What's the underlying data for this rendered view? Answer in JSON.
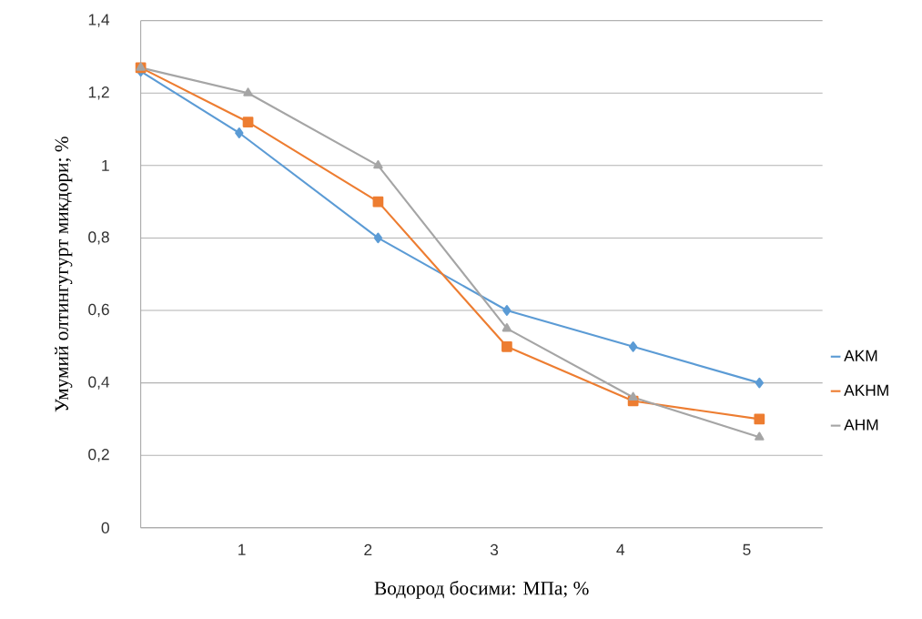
{
  "chart_data": {
    "type": "line",
    "xlabel": "Водород босими: МПа; %",
    "ylabel": "Умумий олтингугурт микдори; %",
    "xlim": [
      0.2,
      5.6
    ],
    "xticks": [
      1,
      2,
      3,
      4,
      5
    ],
    "ylim": [
      0,
      1.4
    ],
    "yticks": [
      0,
      {
        "value": 0.2,
        "label": "0,2"
      },
      {
        "value": 0.4,
        "label": "0,4"
      },
      {
        "value": 0.6,
        "label": "0,6"
      },
      {
        "value": 0.8,
        "label": "0,8"
      },
      1,
      {
        "value": 1.2,
        "label": "1,2"
      },
      {
        "value": 1.4,
        "label": "1,4"
      }
    ],
    "grid": "y",
    "legend": "right",
    "line_style": "solid",
    "series": [
      {
        "name": "AKM",
        "color": "#5b9bd5",
        "marker": "diamond",
        "x": [
          0.2,
          0.98,
          2.08,
          3.1,
          4.1,
          5.1
        ],
        "values": [
          1.26,
          1.09,
          0.8,
          0.6,
          0.5,
          0.4
        ]
      },
      {
        "name": "AKHM",
        "color": "#ed7d31",
        "marker": "square",
        "x": [
          0.2,
          1.05,
          2.08,
          3.1,
          4.1,
          5.1
        ],
        "values": [
          1.27,
          1.12,
          0.9,
          0.5,
          0.35,
          0.3
        ]
      },
      {
        "name": "AHM",
        "color": "#a5a5a5",
        "marker": "triangle",
        "x": [
          0.2,
          1.05,
          2.08,
          3.1,
          4.1,
          5.1
        ],
        "values": [
          1.27,
          1.2,
          1.0,
          0.55,
          0.36,
          0.25
        ]
      }
    ]
  }
}
